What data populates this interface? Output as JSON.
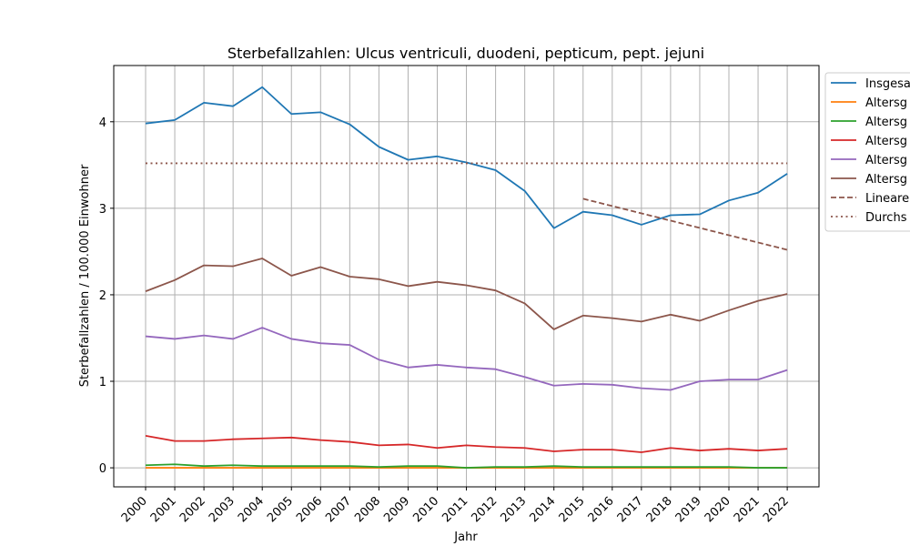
{
  "chart_data": {
    "type": "line",
    "title": "Sterbefallzahlen: Ulcus ventriculi, duodeni, pepticum, pept. jejuni",
    "xlabel": "Jahr",
    "ylabel": "Sterbefallzahlen / 100.000 Einwohner",
    "x": [
      "2000",
      "2001",
      "2002",
      "2003",
      "2004",
      "2005",
      "2006",
      "2007",
      "2008",
      "2009",
      "2010",
      "2011",
      "2012",
      "2013",
      "2014",
      "2015",
      "2016",
      "2017",
      "2018",
      "2019",
      "2020",
      "2021",
      "2022"
    ],
    "ylim": [
      -0.22,
      4.65
    ],
    "yticks": [
      0,
      1,
      2,
      3,
      4
    ],
    "grid": true,
    "legend_position": "right",
    "series": [
      {
        "name": "Insgesa",
        "color": "#1f77b4",
        "style": "solid",
        "values": [
          3.98,
          4.02,
          4.22,
          4.18,
          4.4,
          4.09,
          4.11,
          3.97,
          3.71,
          3.56,
          3.6,
          3.53,
          3.44,
          3.2,
          2.77,
          2.96,
          2.92,
          2.81,
          2.92,
          2.93,
          3.09,
          3.18,
          3.4
        ]
      },
      {
        "name": "Altersg",
        "color": "#ff7f0e",
        "style": "solid",
        "values": [
          0.0,
          0.0,
          0.0,
          0.0,
          0.0,
          0.0,
          0.0,
          0.0,
          0.0,
          0.0,
          0.0,
          0.0,
          0.0,
          0.0,
          0.0,
          0.0,
          0.0,
          0.0,
          0.0,
          0.0,
          0.0,
          0.0,
          0.0
        ]
      },
      {
        "name": "Altersg",
        "color": "#2ca02c",
        "style": "solid",
        "values": [
          0.03,
          0.04,
          0.02,
          0.03,
          0.02,
          0.02,
          0.02,
          0.02,
          0.01,
          0.02,
          0.02,
          0.0,
          0.01,
          0.01,
          0.02,
          0.01,
          0.01,
          0.01,
          0.01,
          0.01,
          0.01,
          0.0,
          0.0
        ]
      },
      {
        "name": "Altersg",
        "color": "#d62728",
        "style": "solid",
        "values": [
          0.37,
          0.31,
          0.31,
          0.33,
          0.34,
          0.35,
          0.32,
          0.3,
          0.26,
          0.27,
          0.23,
          0.26,
          0.24,
          0.23,
          0.19,
          0.21,
          0.21,
          0.18,
          0.23,
          0.2,
          0.22,
          0.2,
          0.22
        ]
      },
      {
        "name": "Altersg",
        "color": "#9467bd",
        "style": "solid",
        "values": [
          1.52,
          1.49,
          1.53,
          1.49,
          1.62,
          1.49,
          1.44,
          1.42,
          1.25,
          1.16,
          1.19,
          1.16,
          1.14,
          1.05,
          0.95,
          0.97,
          0.96,
          0.92,
          0.9,
          1.0,
          1.02,
          1.02,
          1.13
        ]
      },
      {
        "name": "Altersg",
        "color": "#8c564b",
        "style": "solid",
        "values": [
          2.04,
          2.17,
          2.34,
          2.33,
          2.42,
          2.22,
          2.32,
          2.21,
          2.18,
          2.1,
          2.15,
          2.11,
          2.05,
          1.9,
          1.6,
          1.76,
          1.73,
          1.69,
          1.77,
          1.7,
          1.82,
          1.93,
          2.01
        ]
      },
      {
        "name": "Lineare",
        "color": "#8c564b",
        "style": "dashed",
        "x": [
          "2015",
          "2022"
        ],
        "values": [
          3.11,
          2.52
        ]
      },
      {
        "name": "Durchs",
        "color": "#8c564b",
        "style": "dotted",
        "x": [
          "2000",
          "2022"
        ],
        "values": [
          3.52,
          3.52
        ]
      }
    ]
  }
}
